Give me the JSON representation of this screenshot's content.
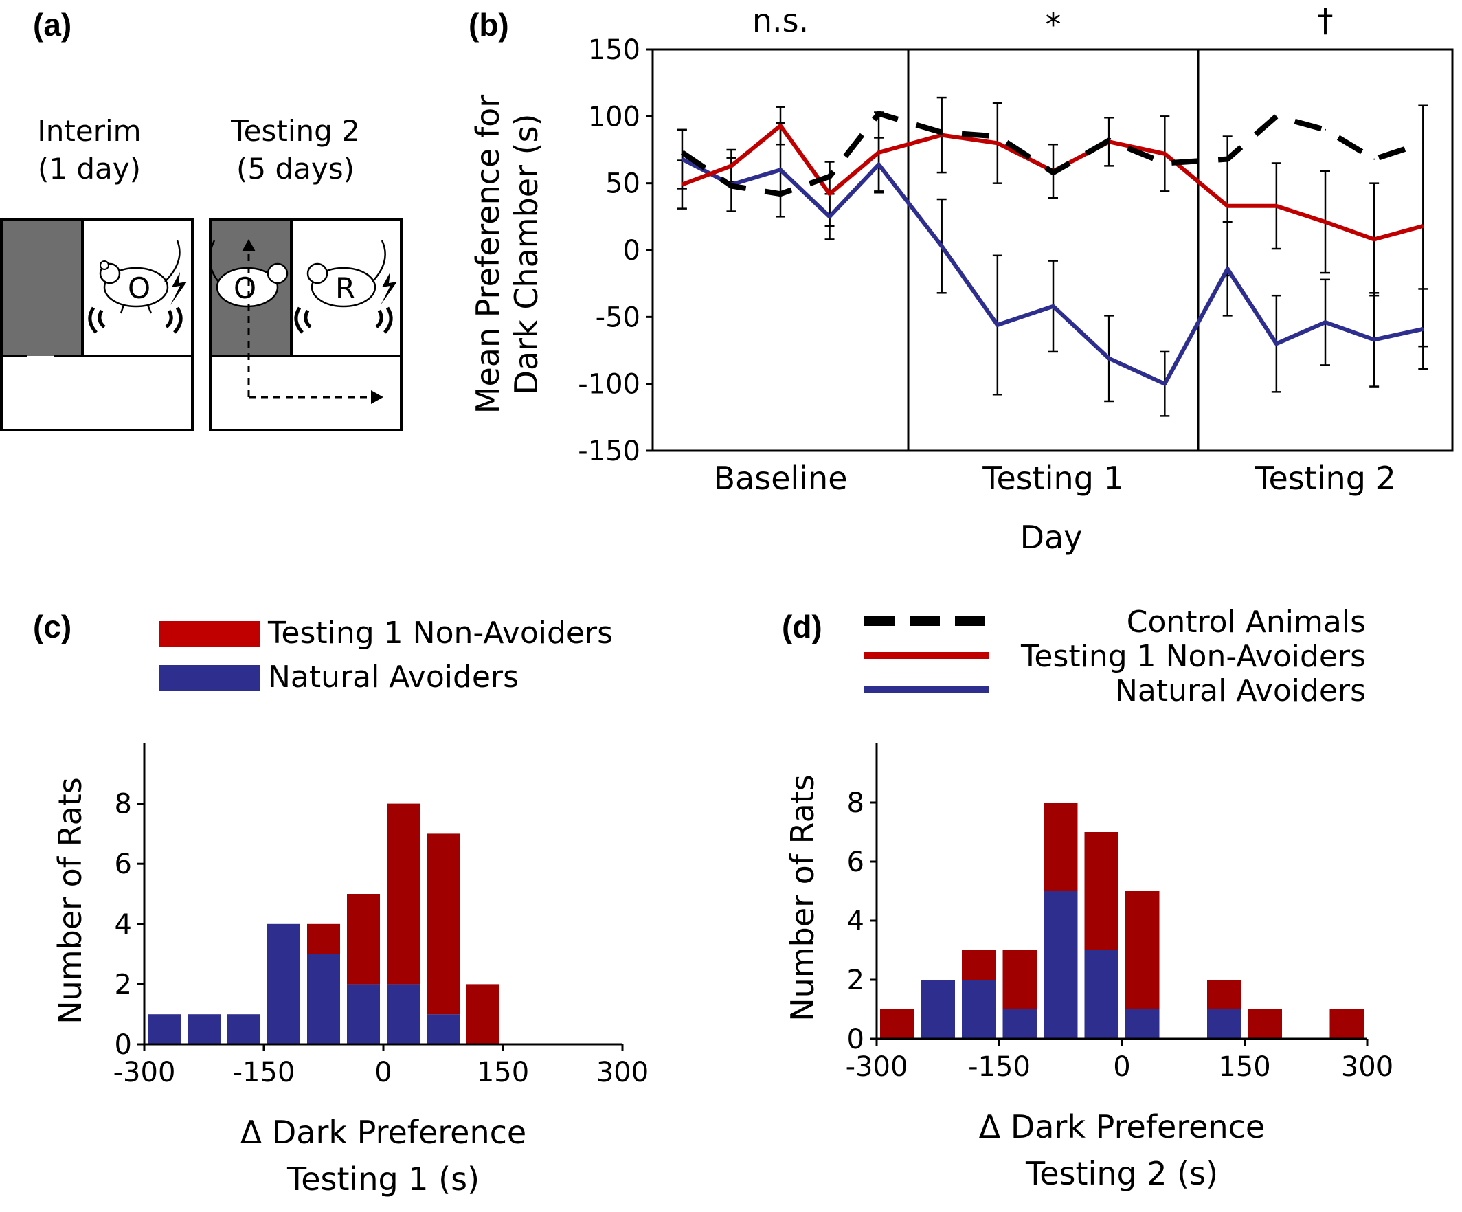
{
  "panels": {
    "a": {
      "label": "(a)",
      "phases": [
        {
          "title": "Interim",
          "subtitle": "(1 day)"
        },
        {
          "title": "Testing 2",
          "subtitle": "(5 days)"
        }
      ],
      "markers": {
        "left_box": "O",
        "right_box_o": "O",
        "right_box_r": "R"
      }
    },
    "b": {
      "label": "(b)"
    },
    "c": {
      "label": "(c)"
    },
    "d": {
      "label": "(d)"
    }
  },
  "legend_c": [
    {
      "name": "Testing 1 Non-Avoiders",
      "color": "#c00000"
    },
    {
      "name": "Natural Avoiders",
      "color": "#2e2e8f"
    }
  ],
  "legend_d": [
    {
      "name": "Control Animals",
      "color": "#000000",
      "style": "dashed"
    },
    {
      "name": "Testing 1 Non-Avoiders",
      "color": "#c00000",
      "style": "solid"
    },
    {
      "name": "Natural Avoiders",
      "color": "#2e2e8f",
      "style": "solid"
    }
  ],
  "colors": {
    "red": "#c00000",
    "darkred": "#a00000",
    "blue": "#2e2e8f",
    "gray": "#6e6e6e"
  },
  "chart_data": [
    {
      "id": "b",
      "type": "line",
      "ylabel_lines": [
        "Mean Preference for",
        "Dark Chamber (s)"
      ],
      "xlabel": "Day",
      "ylim": [
        -150,
        150
      ],
      "yticks": [
        150,
        100,
        50,
        0,
        -50,
        -100,
        -150
      ],
      "groups": [
        {
          "label": "Baseline",
          "days": 5,
          "sig": "n.s."
        },
        {
          "label": "Testing 1",
          "days": 5,
          "sig": "*"
        },
        {
          "label": "Testing 2",
          "days": 5,
          "sig": "†"
        }
      ],
      "series": [
        {
          "name": "Control Animals",
          "color": "#000000",
          "style": "dashed",
          "values": [
            73,
            48,
            42,
            55,
            102,
            88,
            85,
            58,
            82,
            65,
            68,
            100,
            90,
            68,
            80
          ]
        },
        {
          "name": "Testing 1 Non-Avoiders",
          "color": "#c00000",
          "style": "solid",
          "values": [
            49,
            63,
            93,
            42,
            73,
            86,
            80,
            59,
            81,
            72,
            33,
            33,
            21,
            8,
            18
          ],
          "err": [
            18,
            12,
            14,
            24,
            30,
            28,
            30,
            20,
            18,
            28,
            52,
            32,
            38,
            42,
            90
          ]
        },
        {
          "name": "Natural Avoiders",
          "color": "#2e2e8f",
          "style": "solid",
          "values": [
            68,
            49,
            60,
            25,
            64,
            3,
            -56,
            -42,
            -81,
            -100,
            -14,
            -70,
            -54,
            -67,
            -59
          ],
          "err": [
            22,
            20,
            35,
            17,
            20,
            35,
            52,
            34,
            32,
            24,
            35,
            36,
            32,
            35,
            30
          ]
        }
      ]
    },
    {
      "id": "c",
      "type": "bar",
      "stacked": true,
      "ylabel": "Number of Rats",
      "xlabel_lines": [
        "Δ Dark Preference",
        "Testing 1 (s)"
      ],
      "xlim": [
        -300,
        300
      ],
      "xticks": [
        -300,
        -150,
        0,
        150,
        300
      ],
      "ylim": [
        0,
        10
      ],
      "yticks": [
        0,
        2,
        4,
        6,
        8
      ],
      "bin_width": 50,
      "x": [
        -275,
        -225,
        -175,
        -125,
        -75,
        -25,
        25,
        75,
        125
      ],
      "series": [
        {
          "name": "Natural Avoiders",
          "color": "#2e2e8f",
          "values": [
            1,
            1,
            1,
            4,
            3,
            2,
            2,
            1,
            0
          ]
        },
        {
          "name": "Testing 1 Non-Avoiders",
          "color": "#a00000",
          "values": [
            0,
            0,
            0,
            0,
            1,
            3,
            6,
            6,
            2
          ]
        }
      ]
    },
    {
      "id": "d",
      "type": "bar",
      "stacked": true,
      "ylabel": "Number of Rats",
      "xlabel_lines": [
        "Δ Dark Preference",
        "Testing 2 (s)"
      ],
      "xlim": [
        -300,
        300
      ],
      "xticks": [
        -300,
        -150,
        0,
        150,
        300
      ],
      "ylim": [
        0,
        10
      ],
      "yticks": [
        0,
        2,
        4,
        6,
        8
      ],
      "bin_width": 50,
      "x": [
        -275,
        -225,
        -175,
        -125,
        -75,
        -25,
        25,
        75,
        125,
        175,
        225,
        275
      ],
      "series": [
        {
          "name": "Natural Avoiders",
          "color": "#2e2e8f",
          "values": [
            0,
            2,
            2,
            1,
            5,
            3,
            1,
            0,
            1,
            0,
            0,
            0
          ]
        },
        {
          "name": "Testing 1 Non-Avoiders",
          "color": "#a00000",
          "values": [
            1,
            0,
            1,
            2,
            3,
            4,
            4,
            0,
            1,
            1,
            0,
            1
          ]
        }
      ]
    }
  ]
}
